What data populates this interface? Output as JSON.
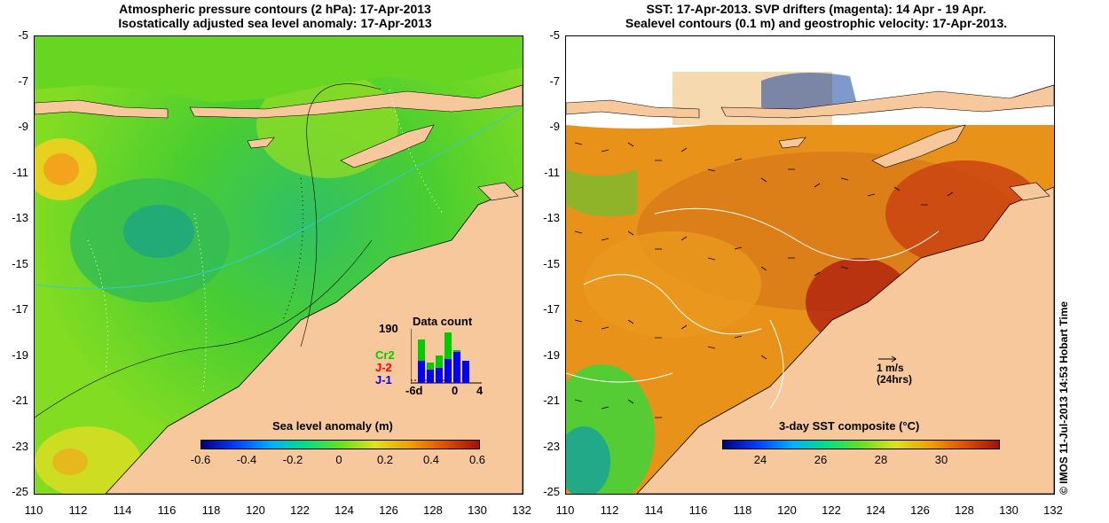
{
  "left_map": {
    "title_line1": "Atmospheric pressure contours (2 hPa): 17-Apr-2013",
    "title_line2": "Isostatically adjusted sea level anomaly: 17-Apr-2013",
    "colorbar_label": "Sea level anomaly (m)",
    "colorbar_ticks": [
      "-0.6",
      "-0.4",
      "-0.2",
      "0",
      "0.2",
      "0.4",
      "0.6"
    ],
    "inset": {
      "title": "Data count",
      "ymax": "190",
      "xticks": [
        "-6d",
        "0",
        "4"
      ],
      "satellites": [
        {
          "name": "Cr2",
          "color": "#00cc00"
        },
        {
          "name": "J-2",
          "color": "#ff0000"
        },
        {
          "name": "J-1",
          "color": "#0000ff"
        }
      ]
    }
  },
  "right_map": {
    "title_line1": "SST: 17-Apr-2013. SVP drifters (magenta): 14 Apr - 19 Apr.",
    "title_line2": "Sealevel contours (0.1 m) and geostrophic velocity: 17-Apr-2013.",
    "colorbar_label": "3-day SST composite (°C)",
    "colorbar_ticks": [
      "24",
      "26",
      "28",
      "30"
    ],
    "scale_arrow_label1": "1 m/s",
    "scale_arrow_label2": "(24hrs)"
  },
  "y_ticks": [
    "-5",
    "-7",
    "-9",
    "-11",
    "-13",
    "-15",
    "-17",
    "-19",
    "-21",
    "-23",
    "-25"
  ],
  "x_ticks": [
    "110",
    "112",
    "114",
    "116",
    "118",
    "120",
    "122",
    "124",
    "126",
    "128",
    "130",
    "132"
  ],
  "copyright": "© IMOS 11-Jul-2013 14:53 Hobart Time",
  "colors": {
    "land": "#f7c89b",
    "ocean_green": "#55dd22",
    "ocean_yellow": "#ccee22",
    "sst_orange": "#e8921a",
    "sst_red": "#b01010"
  }
}
